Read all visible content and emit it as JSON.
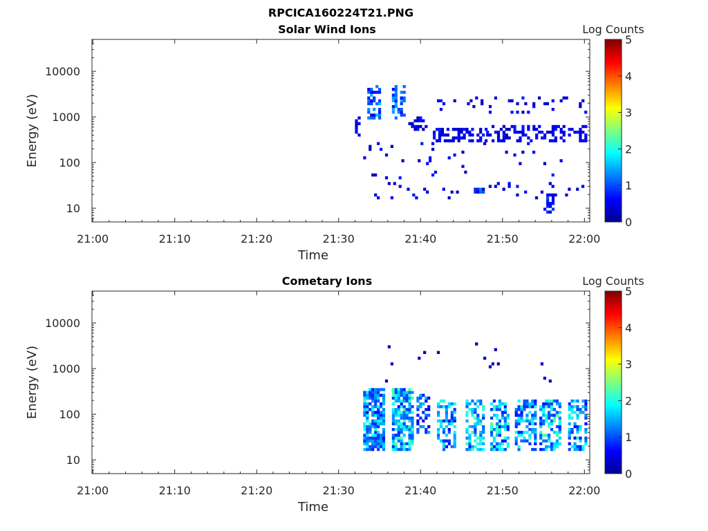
{
  "figure": {
    "title": "RPCICA160224T21.PNG"
  },
  "chart_data": [
    {
      "type": "heatmap",
      "title": "Solar Wind Ions",
      "xlabel": "Time",
      "ylabel": "Energy (eV)",
      "x_ticks": [
        "21:00",
        "21:10",
        "21:20",
        "21:30",
        "21:40",
        "21:50",
        "22:00"
      ],
      "xlim": [
        "21:00",
        "22:00"
      ],
      "y_ticks": [
        "10",
        "100",
        "1000",
        "10000"
      ],
      "yscale": "log",
      "ylim": [
        5,
        50000
      ],
      "colorbar": {
        "label": "Log Counts",
        "ticks": [
          "0",
          "1",
          "2",
          "3",
          "4",
          "5"
        ],
        "range": [
          0,
          5
        ],
        "colormap": "jet"
      },
      "clusters": [
        {
          "t0": 32.0,
          "t1": 32.5,
          "e0": 400,
          "e1": 1000,
          "level": 0.3,
          "density": 0.55
        },
        {
          "t0": 33.5,
          "t1": 35.0,
          "e0": 900,
          "e1": 5000,
          "level": 0.6,
          "density": 0.55
        },
        {
          "t0": 36.5,
          "t1": 38.0,
          "e0": 900,
          "e1": 5000,
          "level": 0.6,
          "density": 0.55
        },
        {
          "t0": 38.5,
          "t1": 40.5,
          "e0": 500,
          "e1": 1000,
          "level": 0.3,
          "density": 0.35
        },
        {
          "t0": 41.5,
          "t1": 48.0,
          "e0": 300,
          "e1": 600,
          "level": 0.3,
          "density": 0.45
        },
        {
          "t0": 48.0,
          "t1": 60.0,
          "e0": 300,
          "e1": 700,
          "level": 0.3,
          "density": 0.4
        },
        {
          "t0": 42.0,
          "t1": 60.0,
          "e0": 1200,
          "e1": 3000,
          "level": 0.3,
          "density": 0.12
        },
        {
          "t0": 33.0,
          "t1": 60.0,
          "e0": 15,
          "e1": 300,
          "level": 0.3,
          "density": 0.04
        },
        {
          "t0": 46.5,
          "t1": 47.5,
          "e0": 20,
          "e1": 30,
          "level": 0.5,
          "density": 0.7
        },
        {
          "t0": 55.0,
          "t1": 56.0,
          "e0": 8,
          "e1": 20,
          "level": 0.4,
          "density": 0.5
        }
      ]
    },
    {
      "type": "heatmap",
      "title": "Cometary Ions",
      "xlabel": "Time",
      "ylabel": "Energy (eV)",
      "x_ticks": [
        "21:00",
        "21:10",
        "21:20",
        "21:30",
        "21:40",
        "21:50",
        "22:00"
      ],
      "xlim": [
        "21:00",
        "22:00"
      ],
      "y_ticks": [
        "10",
        "100",
        "1000",
        "10000"
      ],
      "yscale": "log",
      "ylim": [
        5,
        50000
      ],
      "colorbar": {
        "label": "Log Counts",
        "ticks": [
          "0",
          "1",
          "2",
          "3",
          "4",
          "5"
        ],
        "range": [
          0,
          5
        ],
        "colormap": "jet"
      },
      "clusters": [
        {
          "t0": 33.0,
          "t1": 35.5,
          "e0": 15,
          "e1": 400,
          "level": 0.8,
          "density": 0.75
        },
        {
          "t0": 36.5,
          "t1": 39.0,
          "e0": 15,
          "e1": 400,
          "level": 0.9,
          "density": 0.7
        },
        {
          "t0": 39.5,
          "t1": 41.0,
          "e0": 40,
          "e1": 300,
          "level": 0.6,
          "density": 0.45
        },
        {
          "t0": 42.0,
          "t1": 44.0,
          "e0": 15,
          "e1": 200,
          "level": 0.8,
          "density": 0.55
        },
        {
          "t0": 45.5,
          "t1": 47.5,
          "e0": 15,
          "e1": 200,
          "level": 0.9,
          "density": 0.55
        },
        {
          "t0": 48.5,
          "t1": 50.5,
          "e0": 15,
          "e1": 200,
          "level": 0.9,
          "density": 0.55
        },
        {
          "t0": 51.5,
          "t1": 54.0,
          "e0": 15,
          "e1": 200,
          "level": 0.8,
          "density": 0.55
        },
        {
          "t0": 54.5,
          "t1": 57.0,
          "e0": 15,
          "e1": 200,
          "level": 0.9,
          "density": 0.55
        },
        {
          "t0": 58.0,
          "t1": 60.0,
          "e0": 15,
          "e1": 200,
          "level": 0.8,
          "density": 0.55
        },
        {
          "t0": 34.0,
          "t1": 56.0,
          "e0": 500,
          "e1": 5000,
          "level": 0.2,
          "density": 0.02
        }
      ]
    }
  ]
}
